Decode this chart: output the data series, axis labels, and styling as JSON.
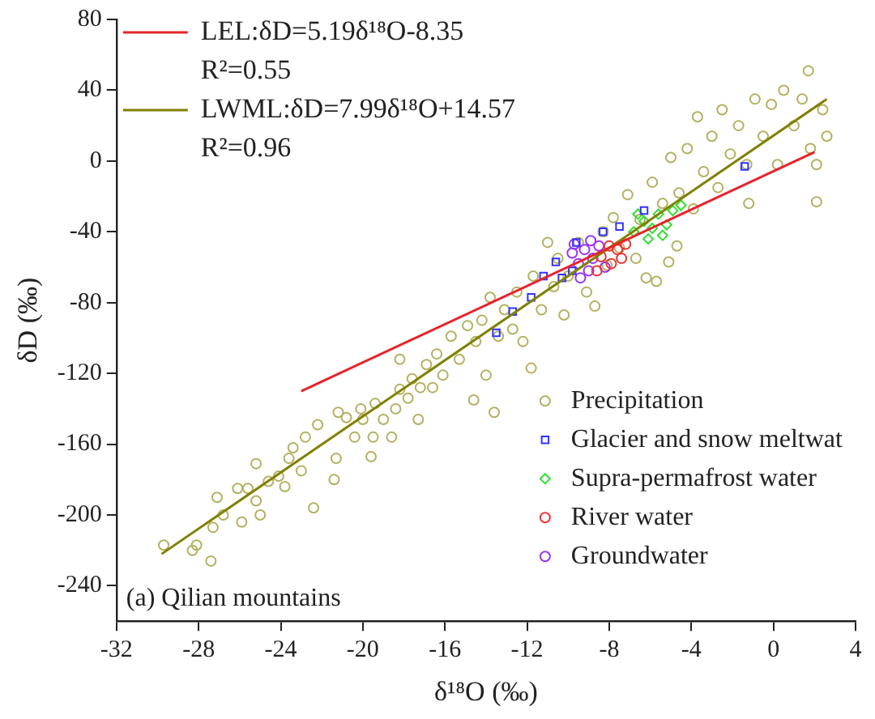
{
  "chart_data": {
    "type": "scatter",
    "xlabel": "δ¹⁸O (‰)",
    "ylabel": "δD (‰)",
    "xlim": [
      -32,
      4
    ],
    "xticks": [
      -32,
      -28,
      -24,
      -20,
      -16,
      -12,
      -8,
      -4,
      0,
      4
    ],
    "ylim": [
      -260,
      80
    ],
    "yticks": [
      -240,
      -200,
      -160,
      -120,
      -80,
      -40,
      0,
      40,
      80
    ],
    "grid": false,
    "legend": "top left",
    "annotations": [
      "R²=0.55",
      "R²=0.96",
      "(a) Qilian mountains"
    ],
    "series": [
      {
        "name": "LEL:δD=5.19δ¹⁸O-8.35",
        "type": "line",
        "color": "#e8222a",
        "marker": "none",
        "line_style": "solid",
        "x": [
          -23,
          2
        ],
        "values": [
          -130,
          5
        ]
      },
      {
        "name": "LWML:δD=7.99δ¹⁸O+14.57",
        "type": "line",
        "color": "#808000",
        "marker": "none",
        "line_style": "solid",
        "x": [
          -29.8,
          2.6
        ],
        "values": [
          -222,
          35
        ]
      },
      {
        "name": "Glacier and snow meltwat",
        "color": "#3333ff",
        "marker": "square",
        "x": [
          -13.5,
          -12.7,
          -11.8,
          -11.2,
          -10.6,
          -10.3,
          -9.8,
          -9.6,
          -8.3,
          -7.5,
          -6.3,
          -1.4
        ],
        "values": [
          -97,
          -85,
          -77,
          -65,
          -57,
          -66,
          -62,
          -46,
          -40,
          -37,
          -28,
          -3
        ]
      },
      {
        "name": "Supra-permafrost water",
        "color": "#33dd33",
        "marker": "diamond",
        "x": [
          -6.8,
          -6.6,
          -6.3,
          -6.1,
          -5.9,
          -5.6,
          -5.4,
          -5.2,
          -4.9,
          -4.5
        ],
        "values": [
          -40,
          -30,
          -34,
          -44,
          -38,
          -30,
          -42,
          -36,
          -28,
          -25
        ]
      },
      {
        "name": "River water",
        "color": "#ee3333",
        "marker": "circle",
        "x": [
          -8.6,
          -8.4,
          -8.0,
          -7.9,
          -7.6,
          -7.4,
          -7.2
        ],
        "values": [
          -62,
          -54,
          -48,
          -58,
          -50,
          -55,
          -47
        ]
      },
      {
        "name": "Groundwater",
        "color": "#9933ff",
        "marker": "circle",
        "x": [
          -9.8,
          -9.7,
          -9.5,
          -9.4,
          -9.2,
          -9.0,
          -8.9,
          -8.8,
          -8.5,
          -8.2
        ],
        "values": [
          -52,
          -47,
          -58,
          -66,
          -50,
          -62,
          -45,
          -55,
          -48,
          -60
        ]
      },
      {
        "name": "Precipitation",
        "color": "#b5b060",
        "marker": "circle",
        "x": [
          -29.7,
          -28.3,
          -28.1,
          -27.4,
          -27.1,
          -27.3,
          -26.8,
          -26.1,
          -25.9,
          -25.6,
          -25.2,
          -25.2,
          -25.0,
          -24.6,
          -24.1,
          -23.8,
          -23.6,
          -23.4,
          -23.0,
          -22.8,
          -22.4,
          -22.2,
          -21.4,
          -21.3,
          -21.2,
          -20.8,
          -20.4,
          -20.1,
          -20.0,
          -19.6,
          -19.5,
          -19.4,
          -19.0,
          -18.6,
          -18.4,
          -18.2,
          -18.2,
          -17.8,
          -17.6,
          -17.3,
          -17.2,
          -16.9,
          -16.6,
          -16.4,
          -16.1,
          -15.7,
          -15.3,
          -14.9,
          -14.6,
          -14.5,
          -14.2,
          -14.0,
          -13.8,
          -13.6,
          -13.4,
          -13.1,
          -12.7,
          -12.5,
          -12.2,
          -11.8,
          -11.7,
          -11.3,
          -11.0,
          -10.7,
          -10.5,
          -10.2,
          -10.0,
          -9.5,
          -9.1,
          -8.7,
          -8.3,
          -8.1,
          -7.8,
          -7.5,
          -7.1,
          -6.7,
          -6.5,
          -6.2,
          -5.9,
          -5.7,
          -5.4,
          -5.1,
          -5.0,
          -4.7,
          -4.6,
          -4.2,
          -3.9,
          -3.7,
          -3.4,
          -3.0,
          -2.7,
          -2.5,
          -2.1,
          -1.7,
          -1.3,
          -1.2,
          -0.9,
          -0.5,
          -0.1,
          0.2,
          0.5,
          1.0,
          1.4,
          1.7,
          1.8,
          2.1,
          2.4,
          2.6,
          2.1
        ],
        "values": [
          -217,
          -220,
          -217,
          -226,
          -190,
          -207,
          -200,
          -185,
          -204,
          -185,
          -171,
          -192,
          -200,
          -181,
          -178,
          -184,
          -168,
          -162,
          -175,
          -156,
          -196,
          -149,
          -180,
          -168,
          -142,
          -145,
          -156,
          -140,
          -146,
          -167,
          -156,
          -137,
          -146,
          -156,
          -140,
          -129,
          -112,
          -134,
          -123,
          -146,
          -128,
          -115,
          -128,
          -109,
          -121,
          -99,
          -112,
          -93,
          -135,
          -102,
          -90,
          -121,
          -77,
          -142,
          -99,
          -84,
          -95,
          -74,
          -102,
          -117,
          -65,
          -84,
          -46,
          -71,
          -55,
          -87,
          -65,
          -46,
          -74,
          -82,
          -40,
          -59,
          -32,
          -49,
          -19,
          -55,
          -33,
          -66,
          -12,
          -68,
          -24,
          -57,
          2,
          -48,
          -18,
          7,
          -27,
          25,
          -6,
          14,
          -15,
          29,
          4,
          20,
          -2,
          -24,
          35,
          14,
          32,
          -2,
          40,
          20,
          35,
          51,
          7,
          -23,
          29,
          14,
          -2
        ]
      }
    ]
  }
}
